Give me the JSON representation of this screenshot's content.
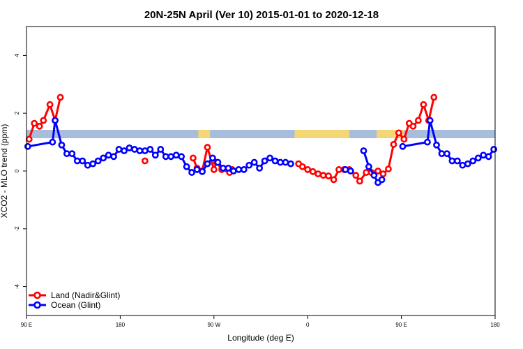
{
  "chart_data": {
    "type": "line",
    "title": "20N-25N April (Ver 10)   2015-01-01 to 2020-12-18",
    "xlabel": "Longitude (deg E)",
    "ylabel": "XCO2 - MLO trend (ppm)",
    "xlim": [
      0,
      360
    ],
    "ylim": [
      -5,
      5
    ],
    "x_ticks": [
      {
        "value": 0,
        "label": "90 E"
      },
      {
        "value": 72,
        "label": "180"
      },
      {
        "value": 144,
        "label": "90 W"
      },
      {
        "value": 216,
        "label": "0"
      },
      {
        "value": 288,
        "label": "90 E"
      },
      {
        "value": 360,
        "label": "180"
      }
    ],
    "y_ticks": [
      -4,
      -2,
      0,
      2,
      4
    ],
    "land_mask_colors": {
      "ocean": "#a8bddb",
      "land": "#f5d675"
    },
    "land_segments": [
      [
        132,
        141
      ],
      [
        206,
        248
      ],
      [
        269,
        290
      ]
    ],
    "legend_position": "bottom-left",
    "series": [
      {
        "name": "Land (Nadir&Glint)",
        "color": "#ff0000",
        "segments": [
          [
            [
              2,
              1.1
            ],
            [
              6,
              1.65
            ],
            [
              10,
              1.55
            ],
            [
              13,
              1.75
            ],
            [
              18,
              2.3
            ],
            [
              22,
              1.75
            ],
            [
              26,
              2.55
            ]
          ],
          [
            [
              91,
              0.35
            ]
          ],
          [
            [
              128,
              0.45
            ],
            [
              131,
              0.1
            ],
            [
              135,
              0.0
            ],
            [
              139,
              0.82
            ],
            [
              144,
              0.05
            ],
            [
              146,
              0.3
            ],
            [
              150,
              0.05
            ],
            [
              156,
              -0.05
            ],
            [
              158,
              0.05
            ]
          ],
          [
            [
              209,
              0.25
            ],
            [
              212,
              0.15
            ],
            [
              216,
              0.05
            ],
            [
              220,
              -0.02
            ],
            [
              224,
              -0.1
            ],
            [
              228,
              -0.15
            ],
            [
              232,
              -0.17
            ],
            [
              236,
              -0.3
            ],
            [
              240,
              0.05
            ],
            [
              244,
              0.05
            ],
            [
              248,
              0.05
            ],
            [
              253,
              -0.15
            ],
            [
              256,
              -0.35
            ],
            [
              261,
              -0.05
            ],
            [
              265,
              -0.05
            ],
            [
              270,
              0.0
            ],
            [
              274,
              -0.1
            ],
            [
              278,
              0.07
            ],
            [
              282,
              0.92
            ],
            [
              286,
              1.32
            ],
            [
              290,
              1.1
            ],
            [
              294,
              1.65
            ],
            [
              297,
              1.55
            ],
            [
              301,
              1.75
            ],
            [
              305,
              2.3
            ],
            [
              309,
              1.75
            ],
            [
              313,
              2.55
            ]
          ]
        ]
      },
      {
        "name": "Ocean (Glint)",
        "color": "#0000ff",
        "segments": [
          [
            [
              1,
              0.85
            ],
            [
              20,
              1.0
            ],
            [
              22,
              1.75
            ],
            [
              27,
              0.9
            ],
            [
              31,
              0.6
            ],
            [
              35,
              0.6
            ],
            [
              39,
              0.35
            ],
            [
              43,
              0.35
            ],
            [
              47,
              0.2
            ],
            [
              51,
              0.25
            ],
            [
              55,
              0.35
            ],
            [
              59,
              0.45
            ],
            [
              63,
              0.55
            ],
            [
              67,
              0.5
            ],
            [
              71,
              0.75
            ],
            [
              75,
              0.7
            ],
            [
              79,
              0.8
            ],
            [
              83,
              0.75
            ],
            [
              87,
              0.7
            ],
            [
              91,
              0.7
            ],
            [
              95,
              0.75
            ],
            [
              99,
              0.55
            ],
            [
              103,
              0.75
            ],
            [
              107,
              0.5
            ],
            [
              111,
              0.5
            ],
            [
              115,
              0.55
            ],
            [
              119,
              0.5
            ],
            [
              123,
              0.15
            ],
            [
              127,
              -0.05
            ],
            [
              131,
              0.05
            ],
            [
              135,
              -0.02
            ],
            [
              139,
              0.25
            ],
            [
              143,
              0.45
            ],
            [
              147,
              0.3
            ],
            [
              151,
              0.1
            ],
            [
              155,
              0.1
            ],
            [
              159,
              0.0
            ],
            [
              163,
              0.05
            ],
            [
              167,
              0.05
            ],
            [
              171,
              0.2
            ],
            [
              175,
              0.3
            ],
            [
              179,
              0.1
            ],
            [
              183,
              0.35
            ],
            [
              187,
              0.45
            ],
            [
              191,
              0.35
            ],
            [
              195,
              0.3
            ],
            [
              199,
              0.3
            ],
            [
              203,
              0.25
            ]
          ],
          [
            [
              245,
              0.05
            ],
            [
              249,
              0.0
            ]
          ],
          [
            [
              259,
              0.7
            ],
            [
              263,
              0.15
            ],
            [
              267,
              -0.15
            ],
            [
              270,
              -0.4
            ],
            [
              273,
              -0.3
            ]
          ],
          [
            [
              289,
              0.85
            ],
            [
              308,
              1.0
            ],
            [
              310,
              1.75
            ],
            [
              315,
              0.9
            ],
            [
              319,
              0.6
            ],
            [
              323,
              0.6
            ],
            [
              327,
              0.35
            ],
            [
              331,
              0.35
            ],
            [
              335,
              0.2
            ],
            [
              339,
              0.25
            ],
            [
              343,
              0.35
            ],
            [
              347,
              0.45
            ],
            [
              351,
              0.55
            ],
            [
              355,
              0.5
            ],
            [
              359,
              0.75
            ]
          ]
        ]
      }
    ]
  }
}
